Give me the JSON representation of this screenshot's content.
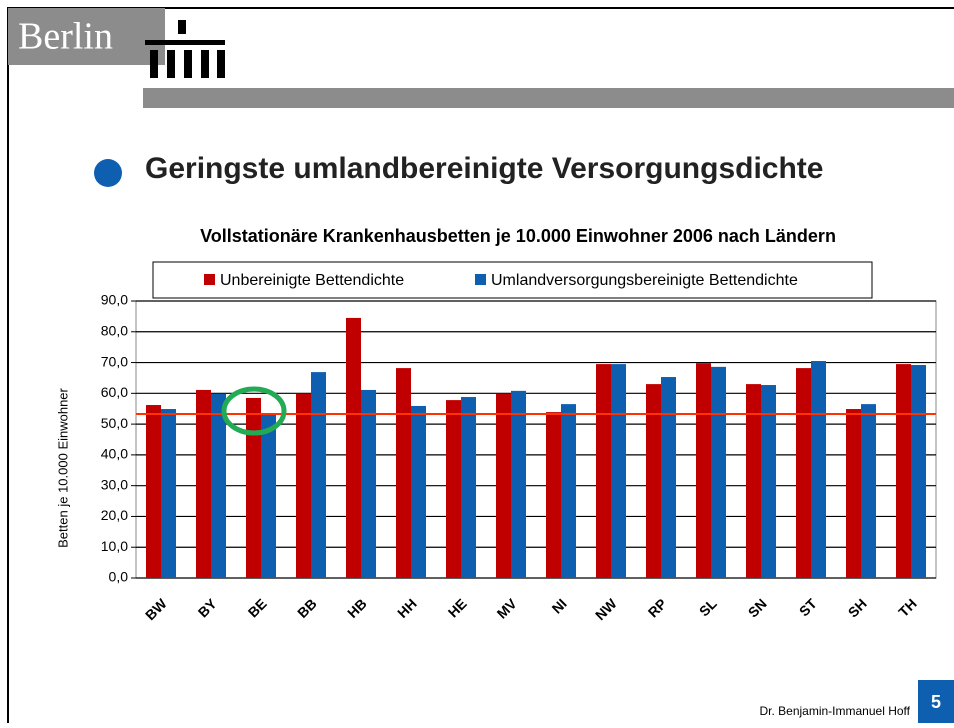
{
  "slide": {
    "logo": "Berlin",
    "heading": "Geringste umlandbereinigte Versorgungsdichte",
    "author": "Dr. Benjamin-Immanuel Hoff",
    "page": "5"
  },
  "chart_data": {
    "type": "bar",
    "title": "Vollstationäre Krankenhausbetten je 10.000 Einwohner 2006 nach Ländern",
    "y_label": "Betten je 10.000 Einwohner",
    "categories": [
      "BW",
      "BY",
      "BE",
      "BB",
      "HB",
      "HH",
      "HE",
      "MV",
      "NI",
      "NW",
      "RP",
      "SL",
      "SN",
      "ST",
      "SH",
      "TH"
    ],
    "series": [
      {
        "name": "Unbereinigte Bettendichte",
        "color": "#c00000",
        "values": [
          56.2,
          61.1,
          58.5,
          59.8,
          84.5,
          68.2,
          57.8,
          59.8,
          53.9,
          69.5,
          63.0,
          69.8,
          63.0,
          68.2,
          54.9,
          69.5
        ]
      },
      {
        "name": "Umlandversorgungsbereinigte Bettendichte",
        "color": "#0f5fb0",
        "values": [
          54.9,
          59.8,
          53.3,
          66.9,
          61.1,
          55.9,
          58.8,
          60.8,
          56.5,
          69.5,
          65.3,
          68.6,
          62.7,
          70.5,
          56.5,
          69.2
        ]
      }
    ],
    "reference_line": {
      "value": 53.3,
      "color": "#ff3300"
    },
    "ylim": [
      0,
      90
    ],
    "yticks": [
      {
        "value": 0,
        "label": "0,0"
      },
      {
        "value": 10,
        "label": "10,0"
      },
      {
        "value": 20,
        "label": "20,0"
      },
      {
        "value": 30,
        "label": "30,0"
      },
      {
        "value": 40,
        "label": "40,0"
      },
      {
        "value": 50,
        "label": "50,0"
      },
      {
        "value": 60,
        "label": "60,0"
      },
      {
        "value": 70,
        "label": "70,0"
      },
      {
        "value": 80,
        "label": "80,0"
      },
      {
        "value": 90,
        "label": "90,0"
      }
    ],
    "grid": true
  }
}
